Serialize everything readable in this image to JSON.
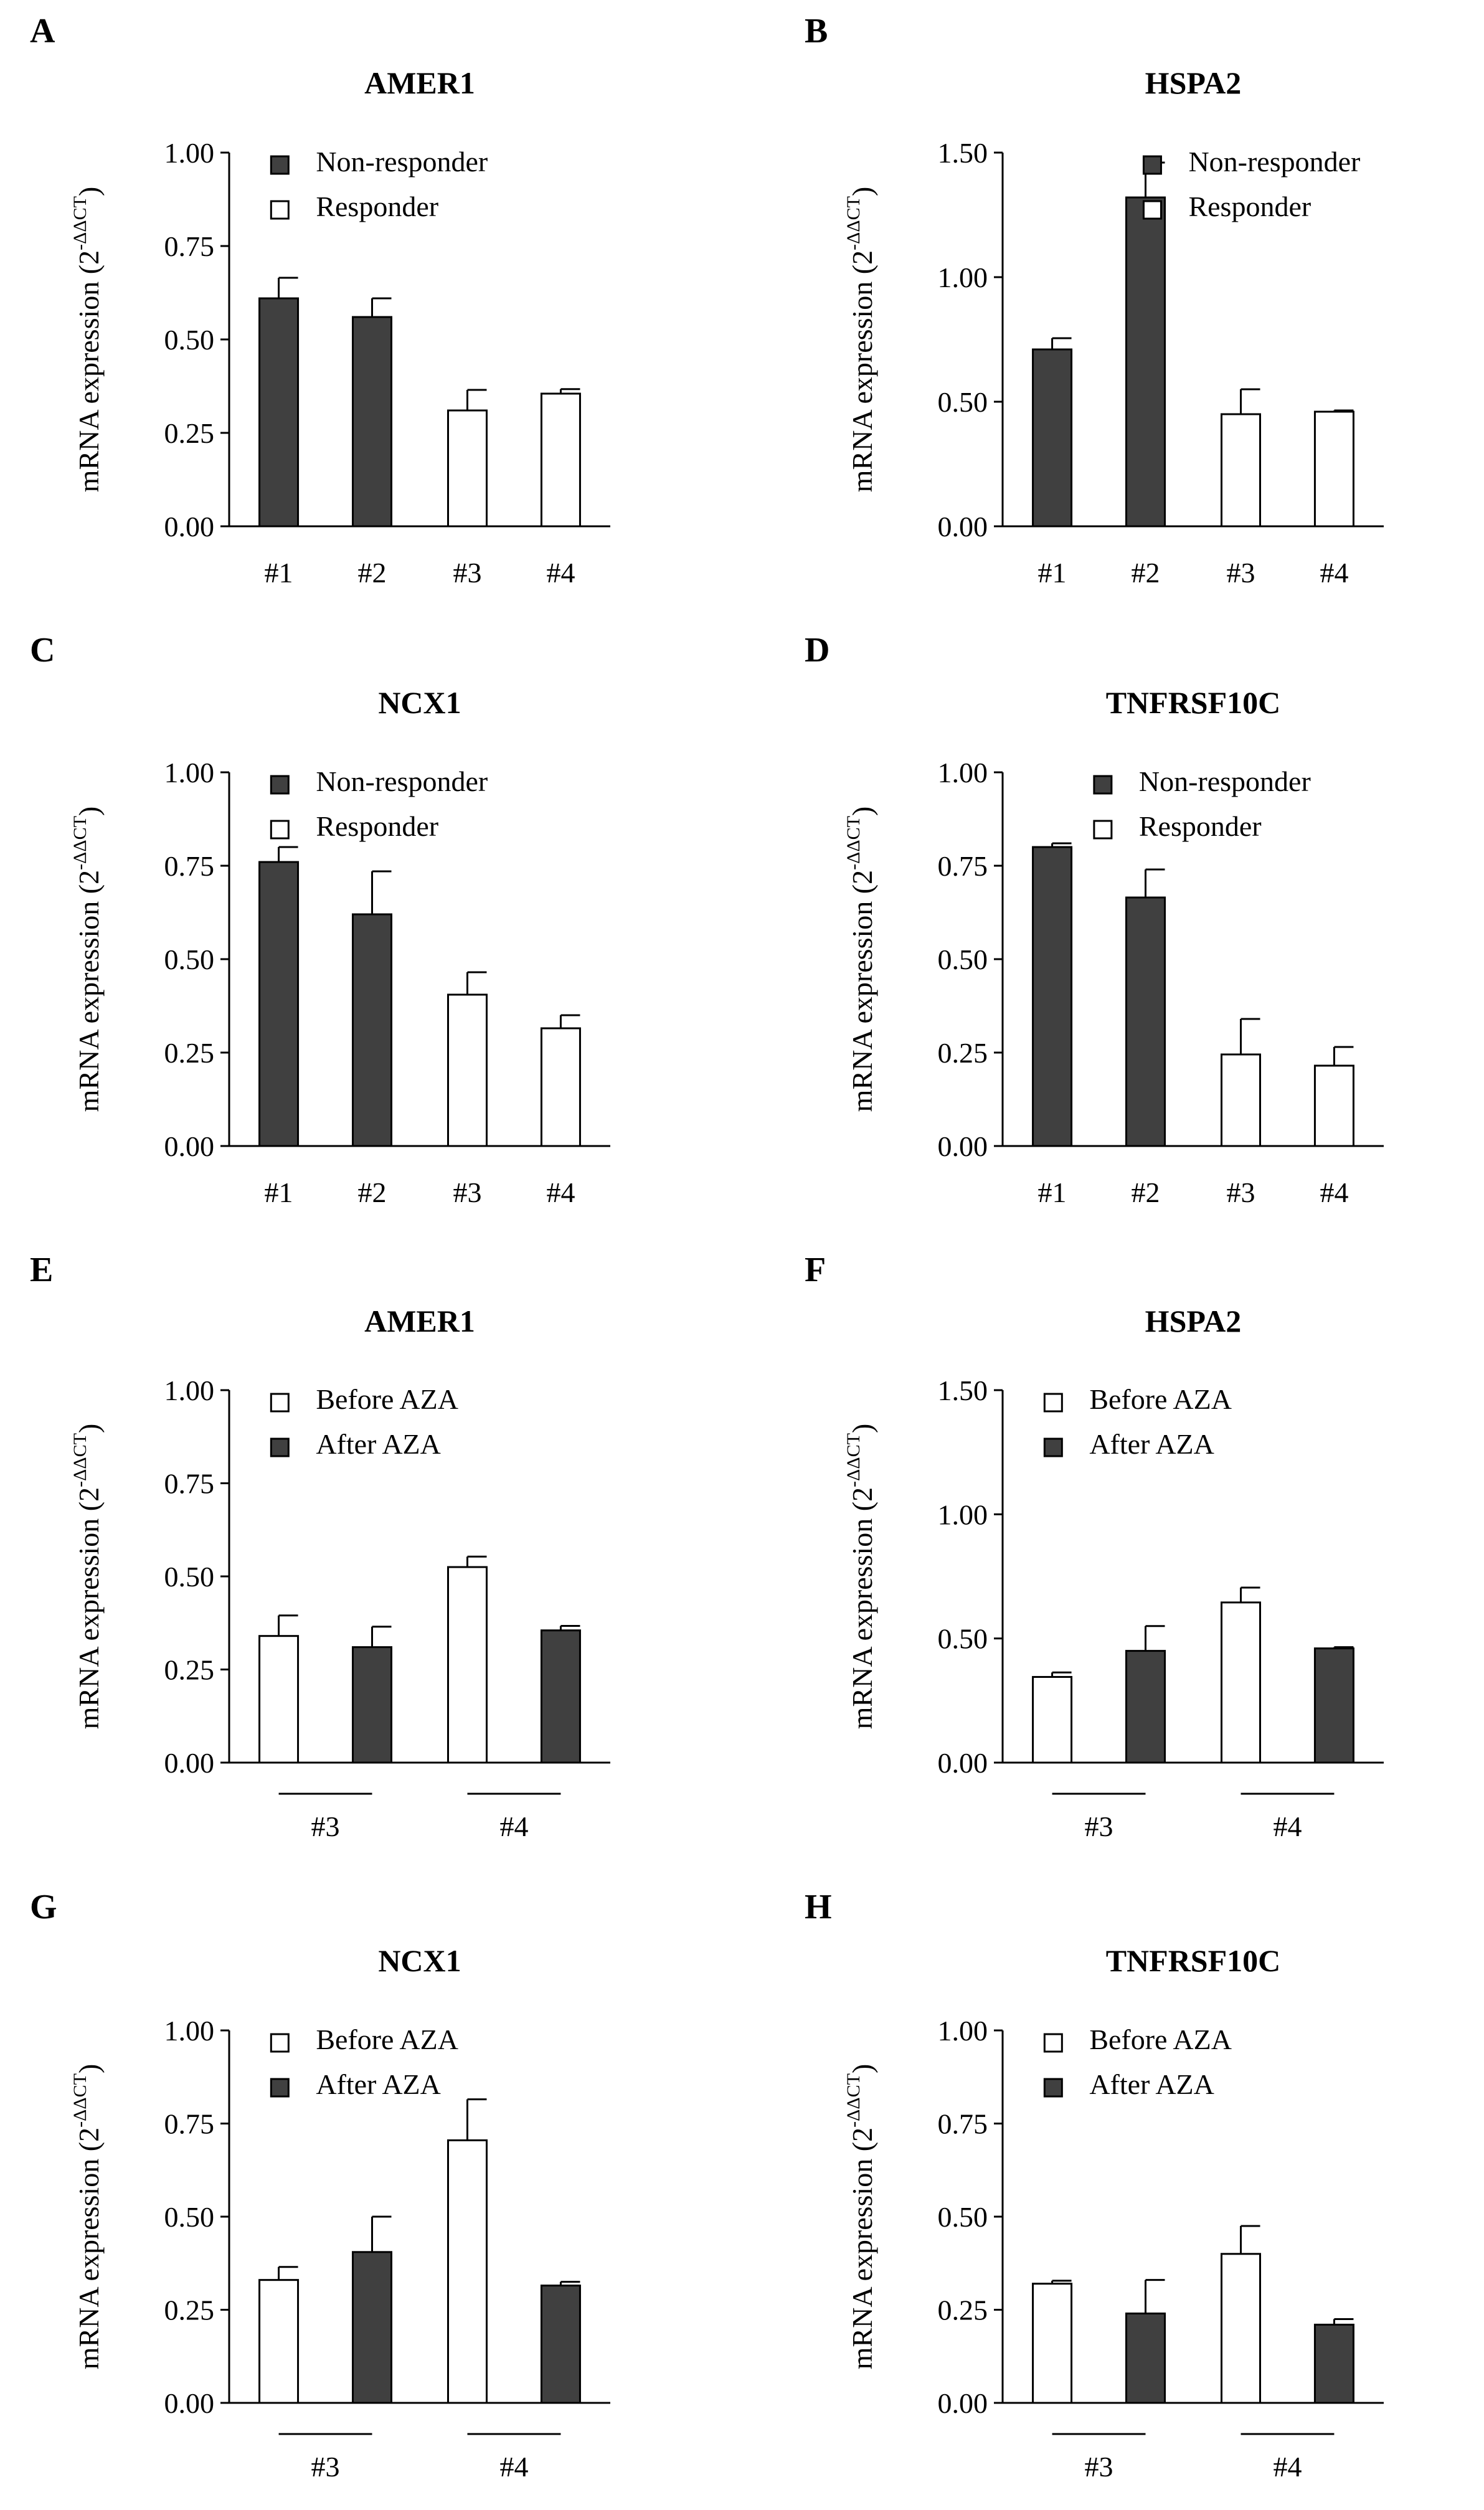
{
  "colors": {
    "dark": "#404040",
    "light": "#ffffff",
    "stroke": "#000000"
  },
  "chart_data": [
    {
      "panel": "A",
      "title": "AMER1",
      "type": "bar",
      "grouped": false,
      "ylabel": "mRNA expression (2",
      "ylabel_sup": "-ΔΔCT",
      "ylabel_close": ")",
      "ylim": [
        0,
        1.0
      ],
      "ticks": [
        "0.00",
        "0.25",
        "0.50",
        "0.75",
        "1.00"
      ],
      "categories": [
        "#1",
        "#2",
        "#3",
        "#4"
      ],
      "values": [
        0.61,
        0.56,
        0.31,
        0.355
      ],
      "errors": [
        0.055,
        0.05,
        0.055,
        0.012
      ],
      "fills": [
        "dark",
        "dark",
        "light",
        "light"
      ],
      "legend": [
        {
          "label": "Non-responder",
          "fill": "dark"
        },
        {
          "label": "Responder",
          "fill": "light"
        }
      ]
    },
    {
      "panel": "B",
      "title": "HSPA2",
      "type": "bar",
      "grouped": false,
      "ylabel": "mRNA expression (2",
      "ylabel_sup": "-ΔΔCT",
      "ylabel_close": ")",
      "ylim": [
        0,
        1.5
      ],
      "ticks": [
        "0.00",
        "0.50",
        "1.00",
        "1.50"
      ],
      "categories": [
        "#1",
        "#2",
        "#3",
        "#4"
      ],
      "values": [
        0.71,
        1.32,
        0.45,
        0.46
      ],
      "errors": [
        0.045,
        0.14,
        0.1,
        0.005
      ],
      "fills": [
        "dark",
        "dark",
        "light",
        "light"
      ],
      "legend": [
        {
          "label": "Non-responder",
          "fill": "dark"
        },
        {
          "label": "Responder",
          "fill": "light"
        }
      ]
    },
    {
      "panel": "C",
      "title": "NCX1",
      "type": "bar",
      "grouped": false,
      "ylabel": "mRNA expression (2",
      "ylabel_sup": "-ΔΔCT",
      "ylabel_close": ")",
      "ylim": [
        0,
        1.0
      ],
      "ticks": [
        "0.00",
        "0.25",
        "0.50",
        "0.75",
        "1.00"
      ],
      "categories": [
        "#1",
        "#2",
        "#3",
        "#4"
      ],
      "values": [
        0.76,
        0.62,
        0.405,
        0.315
      ],
      "errors": [
        0.04,
        0.115,
        0.06,
        0.035
      ],
      "fills": [
        "dark",
        "dark",
        "light",
        "light"
      ],
      "legend": [
        {
          "label": "Non-responder",
          "fill": "dark"
        },
        {
          "label": "Responder",
          "fill": "light"
        }
      ]
    },
    {
      "panel": "D",
      "title": "TNFRSF10C",
      "type": "bar",
      "grouped": false,
      "ylabel": "mRNA expression (2",
      "ylabel_sup": "-ΔΔCT",
      "ylabel_close": ")",
      "ylim": [
        0,
        1.0
      ],
      "ticks": [
        "0.00",
        "0.25",
        "0.50",
        "0.75",
        "1.00"
      ],
      "categories": [
        "#1",
        "#2",
        "#3",
        "#4"
      ],
      "values": [
        0.8,
        0.665,
        0.245,
        0.215
      ],
      "errors": [
        0.01,
        0.075,
        0.095,
        0.05
      ],
      "fills": [
        "dark",
        "dark",
        "light",
        "light"
      ],
      "legend": [
        {
          "label": "Non-responder",
          "fill": "dark"
        },
        {
          "label": "Responder",
          "fill": "light"
        }
      ]
    },
    {
      "panel": "E",
      "title": "AMER1",
      "type": "bar",
      "grouped": true,
      "ylabel": "mRNA expression (2",
      "ylabel_sup": "-ΔΔCT",
      "ylabel_close": ")",
      "ylim": [
        0,
        1.0
      ],
      "ticks": [
        "0.00",
        "0.25",
        "0.50",
        "0.75",
        "1.00"
      ],
      "categories": [
        "#3",
        "#4"
      ],
      "series": [
        {
          "name": "Before AZA",
          "fill": "light",
          "values": [
            0.34,
            0.525
          ],
          "errors": [
            0.055,
            0.028
          ]
        },
        {
          "name": "After AZA",
          "fill": "dark",
          "values": [
            0.31,
            0.355
          ],
          "errors": [
            0.055,
            0.012
          ]
        }
      ],
      "legend": [
        {
          "label": "Before AZA",
          "fill": "light"
        },
        {
          "label": "After AZA",
          "fill": "dark"
        }
      ]
    },
    {
      "panel": "F",
      "title": "HSPA2",
      "type": "bar",
      "grouped": true,
      "ylabel": "mRNA expression (2",
      "ylabel_sup": "-ΔΔCT",
      "ylabel_close": ")",
      "ylim": [
        0,
        1.5
      ],
      "ticks": [
        "0.00",
        "0.50",
        "1.00",
        "1.50"
      ],
      "categories": [
        "#3",
        "#4"
      ],
      "series": [
        {
          "name": "Before AZA",
          "fill": "light",
          "values": [
            0.345,
            0.645
          ],
          "errors": [
            0.018,
            0.06
          ]
        },
        {
          "name": "After AZA",
          "fill": "dark",
          "values": [
            0.45,
            0.46
          ],
          "errors": [
            0.1,
            0.005
          ]
        }
      ],
      "legend": [
        {
          "label": "Before AZA",
          "fill": "light"
        },
        {
          "label": "After AZA",
          "fill": "dark"
        }
      ]
    },
    {
      "panel": "G",
      "title": "NCX1",
      "type": "bar",
      "grouped": true,
      "ylabel": "mRNA expression (2",
      "ylabel_sup": "-ΔΔCT",
      "ylabel_close": ")",
      "ylim": [
        0,
        1.0
      ],
      "ticks": [
        "0.00",
        "0.25",
        "0.50",
        "0.75",
        "1.00"
      ],
      "categories": [
        "#3",
        "#4"
      ],
      "series": [
        {
          "name": "Before AZA",
          "fill": "light",
          "values": [
            0.33,
            0.705
          ],
          "errors": [
            0.035,
            0.11
          ]
        },
        {
          "name": "After AZA",
          "fill": "dark",
          "values": [
            0.405,
            0.315
          ],
          "errors": [
            0.095,
            0.01
          ]
        }
      ],
      "legend": [
        {
          "label": "Before AZA",
          "fill": "light"
        },
        {
          "label": "After AZA",
          "fill": "dark"
        }
      ]
    },
    {
      "panel": "H",
      "title": "TNFRSF10C",
      "type": "bar",
      "grouped": true,
      "ylabel": "mRNA expression (2",
      "ylabel_sup": "-ΔΔCT",
      "ylabel_close": ")",
      "ylim": [
        0,
        1.0
      ],
      "ticks": [
        "0.00",
        "0.25",
        "0.50",
        "0.75",
        "1.00"
      ],
      "categories": [
        "#3",
        "#4"
      ],
      "series": [
        {
          "name": "Before AZA",
          "fill": "light",
          "values": [
            0.32,
            0.4
          ],
          "errors": [
            0.008,
            0.075
          ]
        },
        {
          "name": "After AZA",
          "fill": "dark",
          "values": [
            0.24,
            0.21
          ],
          "errors": [
            0.09,
            0.015
          ]
        }
      ],
      "legend": [
        {
          "label": "Before AZA",
          "fill": "light"
        },
        {
          "label": "After AZA",
          "fill": "dark"
        }
      ]
    }
  ]
}
